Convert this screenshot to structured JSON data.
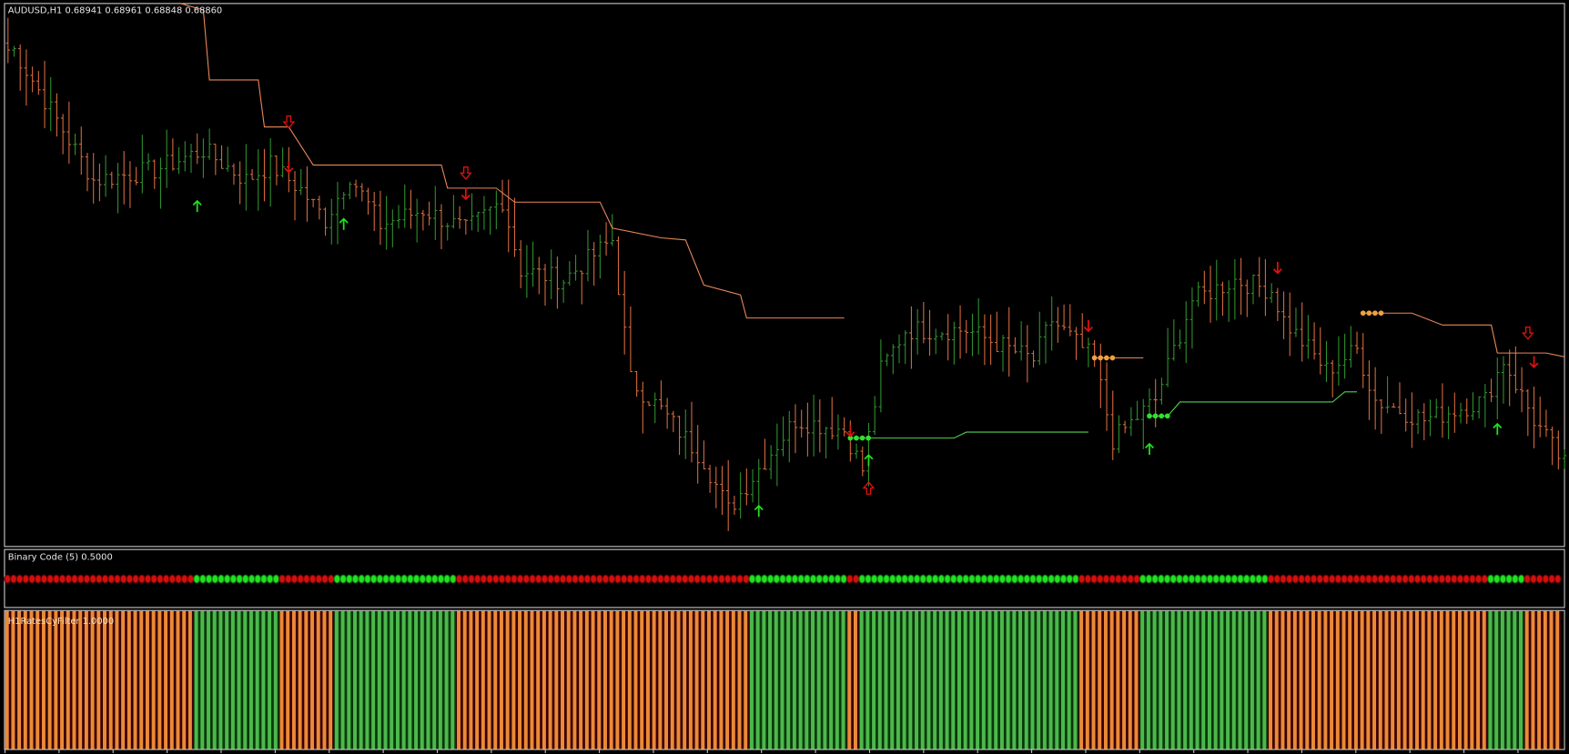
{
  "main_window": {
    "title": "AUDUSD,H1  0.68941 0.68961 0.68848 0.68860",
    "symbol": "AUDUSD",
    "timeframe": "H1",
    "ohlc": {
      "open": "0.68941",
      "high": "0.68961",
      "low": "0.68848",
      "close": "0.68860"
    }
  },
  "subwindow_1": {
    "title": "Binary Code (5) 0.5000"
  },
  "subwindow_2": {
    "title": "H1RatesCyFilter 1.0000"
  },
  "colors": {
    "background": "#000000",
    "bull_bar": "#2f8f2f",
    "bear_bar": "#d2693c",
    "resistance_line": "#e8875a",
    "support_line": "#4fd04f",
    "signal_red": "#e01010",
    "signal_green": "#20e020",
    "binary_red": "#d01010",
    "binary_green": "#22e022",
    "filter_orange": "#ea8a38",
    "filter_green": "#4cb84c",
    "border": "#c8c8c8"
  },
  "chart_data": {
    "type": "ohlc-bar",
    "xlabel": "",
    "ylabel": "",
    "grid": false,
    "bar_count": 256,
    "close_anchors": [
      [
        1,
        0.70046
      ],
      [
        6,
        0.69903
      ],
      [
        11,
        0.6976
      ],
      [
        14,
        0.69674
      ],
      [
        24,
        0.69703
      ],
      [
        32,
        0.6976
      ],
      [
        39,
        0.69674
      ],
      [
        43,
        0.69717
      ],
      [
        48,
        0.69646
      ],
      [
        52,
        0.6956
      ],
      [
        56,
        0.69689
      ],
      [
        61,
        0.69546
      ],
      [
        68,
        0.69589
      ],
      [
        75,
        0.69531
      ],
      [
        81,
        0.69617
      ],
      [
        84,
        0.69417
      ],
      [
        91,
        0.69389
      ],
      [
        99,
        0.69503
      ],
      [
        102,
        0.69103
      ],
      [
        107,
        0.69017
      ],
      [
        114,
        0.68874
      ],
      [
        118,
        0.68731
      ],
      [
        124,
        0.68874
      ],
      [
        129,
        0.68989
      ],
      [
        137,
        0.6896
      ],
      [
        140,
        0.68846
      ],
      [
        143,
        0.69131
      ],
      [
        147,
        0.69246
      ],
      [
        157,
        0.69246
      ],
      [
        168,
        0.6916
      ],
      [
        171,
        0.69274
      ],
      [
        178,
        0.6916
      ],
      [
        181,
        0.68931
      ],
      [
        188,
        0.69046
      ],
      [
        194,
        0.69331
      ],
      [
        201,
        0.69389
      ],
      [
        207,
        0.6936
      ],
      [
        209,
        0.69274
      ],
      [
        216,
        0.69131
      ],
      [
        221,
        0.69189
      ],
      [
        224,
        0.69046
      ],
      [
        232,
        0.68989
      ],
      [
        242,
        0.69046
      ],
      [
        245,
        0.6916
      ],
      [
        250,
        0.68989
      ],
      [
        255,
        0.6886
      ]
    ],
    "resistance_lines": [
      [
        [
          28,
          0.7018
        ],
        [
          32,
          0.7016
        ],
        [
          33,
          0.6996
        ],
        [
          41,
          0.6996
        ],
        [
          42,
          0.69826
        ],
        [
          46,
          0.69826
        ],
        [
          50,
          0.69717
        ],
        [
          71,
          0.69717
        ],
        [
          72,
          0.69651
        ],
        [
          80,
          0.69651
        ],
        [
          83,
          0.69611
        ],
        [
          97,
          0.69611
        ],
        [
          99,
          0.69537
        ],
        [
          107,
          0.69509
        ],
        [
          111,
          0.69503
        ],
        [
          114,
          0.69374
        ],
        [
          120,
          0.69346
        ],
        [
          121,
          0.6928
        ],
        [
          137,
          0.6928
        ]
      ],
      [
        [
          178,
          0.69166
        ],
        [
          186,
          0.69166
        ]
      ],
      [
        [
          222,
          0.69294
        ],
        [
          230,
          0.69294
        ],
        [
          235,
          0.6926
        ],
        [
          243,
          0.6926
        ],
        [
          244,
          0.6918
        ],
        [
          252,
          0.6918
        ],
        [
          255,
          0.69169
        ]
      ]
    ],
    "support_lines": [
      [
        [
          138,
          0.68937
        ],
        [
          155,
          0.68937
        ],
        [
          157,
          0.68954
        ],
        [
          177,
          0.68954
        ]
      ],
      [
        [
          187,
          0.69
        ],
        [
          190,
          0.69
        ],
        [
          192,
          0.6904
        ],
        [
          217,
          0.6904
        ],
        [
          219,
          0.69069
        ],
        [
          221,
          0.69069
        ]
      ]
    ],
    "dot_markers": [
      {
        "color": "orange",
        "bar": 178,
        "price": 0.69166
      },
      {
        "color": "orange",
        "bar": 222,
        "price": 0.69294
      },
      {
        "color": "green",
        "bar": 138,
        "price": 0.68937
      },
      {
        "color": "green",
        "bar": 187,
        "price": 0.69
      }
    ],
    "signals": [
      {
        "type": "red-down",
        "bar": 46,
        "price": 0.69711
      },
      {
        "type": "red-down",
        "bar": 75,
        "price": 0.69634
      },
      {
        "type": "red-down",
        "bar": 177,
        "price": 0.69257
      },
      {
        "type": "red-down",
        "bar": 138,
        "price": 0.68957
      },
      {
        "type": "red-down",
        "bar": 208,
        "price": 0.69423
      },
      {
        "type": "red-down",
        "bar": 250,
        "price": 0.69154
      },
      {
        "type": "red-hollow-down",
        "bar": 46,
        "price": 0.6984
      },
      {
        "type": "red-hollow-down",
        "bar": 75,
        "price": 0.69694
      },
      {
        "type": "red-hollow-down",
        "bar": 249,
        "price": 0.69237
      },
      {
        "type": "red-hollow-up",
        "bar": 141,
        "price": 0.68794
      },
      {
        "type": "green-up",
        "bar": 31,
        "price": 0.696
      },
      {
        "type": "green-up",
        "bar": 55,
        "price": 0.69549
      },
      {
        "type": "green-up",
        "bar": 123,
        "price": 0.68729
      },
      {
        "type": "green-up",
        "bar": 141,
        "price": 0.68874
      },
      {
        "type": "green-up",
        "bar": 187,
        "price": 0.68906
      },
      {
        "type": "green-up",
        "bar": 244,
        "price": 0.68963
      }
    ],
    "state_segments": [
      {
        "state": "red",
        "bars": 31
      },
      {
        "state": "green",
        "bars": 14
      },
      {
        "state": "red",
        "bars": 9
      },
      {
        "state": "green",
        "bars": 20
      },
      {
        "state": "red",
        "bars": 48
      },
      {
        "state": "green",
        "bars": 16
      },
      {
        "state": "red",
        "bars": 2
      },
      {
        "state": "green",
        "bars": 36
      },
      {
        "state": "red",
        "bars": 10
      },
      {
        "state": "green",
        "bars": 21
      },
      {
        "state": "red",
        "bars": 36
      },
      {
        "state": "green",
        "bars": 6
      },
      {
        "state": "red",
        "bars": 6
      }
    ]
  }
}
